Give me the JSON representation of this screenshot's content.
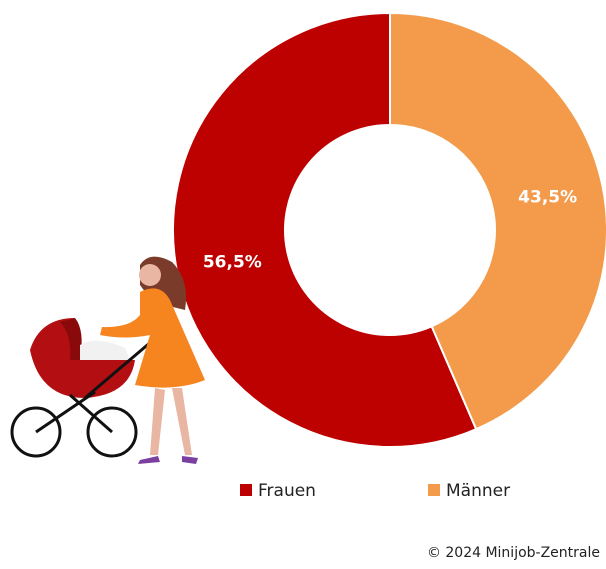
{
  "chart_data": {
    "type": "pie",
    "categories": [
      "Frauen",
      "Männer"
    ],
    "values": [
      56.5,
      43.5
    ],
    "value_labels": [
      "56,5%",
      "43,5%"
    ],
    "colors": [
      "#bd0000",
      "#f39b4b"
    ],
    "source": "© 2024 Minijob-Zentrale"
  }
}
